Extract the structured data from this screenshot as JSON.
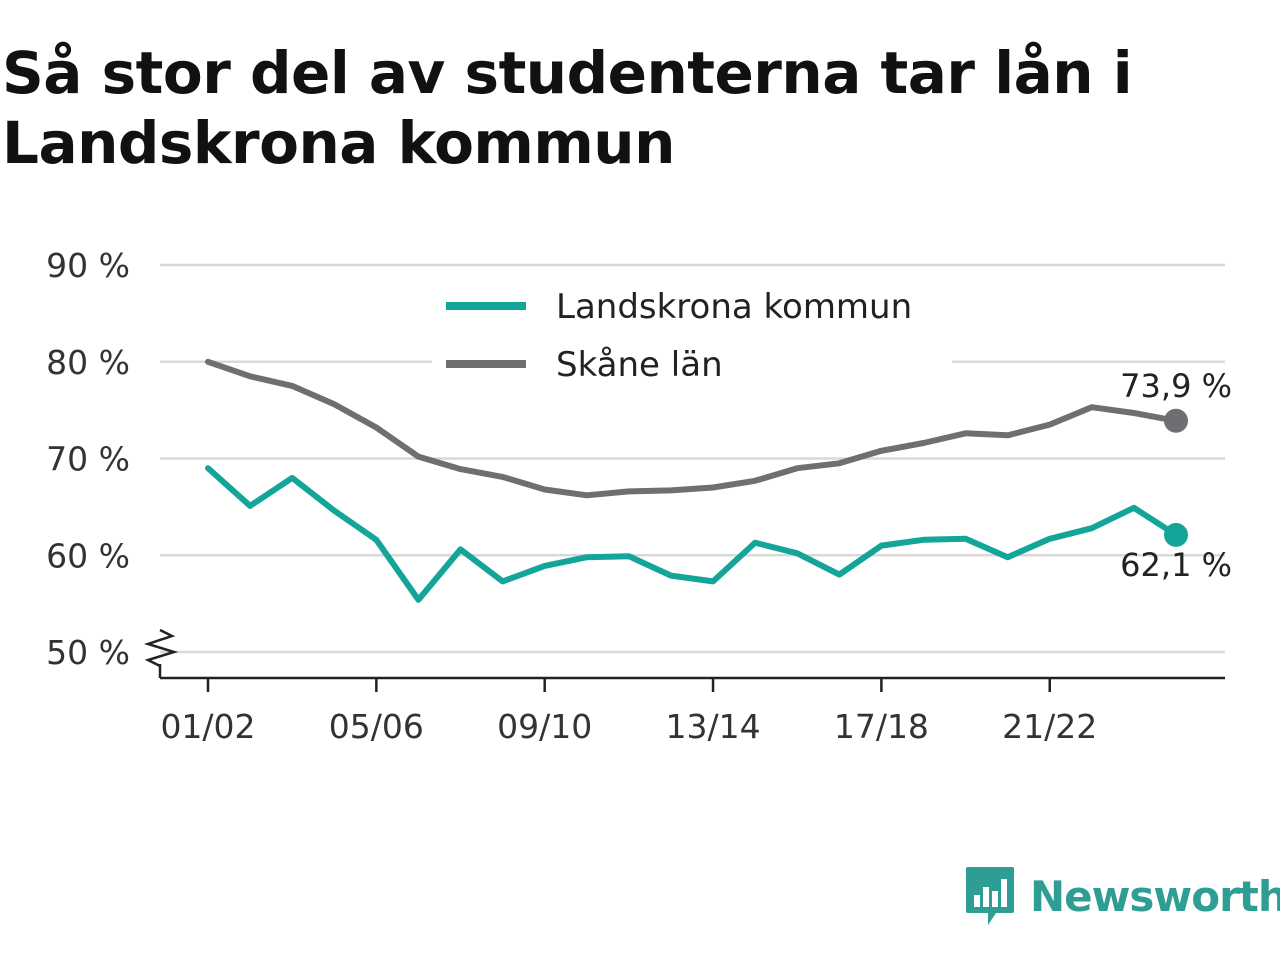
{
  "title": "Så stor del av studenterna tar lån i Landskrona kommun",
  "brand": {
    "name": "Newsworthy",
    "color": "#2e9e94"
  },
  "chart_data": {
    "type": "line",
    "x": [
      "01/02",
      "02/03",
      "03/04",
      "04/05",
      "05/06",
      "06/07",
      "07/08",
      "08/09",
      "09/10",
      "10/11",
      "11/12",
      "12/13",
      "13/14",
      "14/15",
      "15/16",
      "16/17",
      "17/18",
      "18/19",
      "19/20",
      "20/21",
      "21/22",
      "22/23",
      "23/24",
      "24/25"
    ],
    "xticks": [
      "01/02",
      "05/06",
      "09/10",
      "13/14",
      "17/18",
      "21/22"
    ],
    "yticks": [
      50,
      60,
      70,
      80,
      90
    ],
    "ytick_labels": [
      "50 %",
      "60 %",
      "70 %",
      "80 %",
      "90 %"
    ],
    "ylim": [
      50,
      90
    ],
    "y_axis_break": true,
    "grid": true,
    "legend_position": "top-center",
    "series": [
      {
        "name": "Landskrona kommun",
        "color": "#14a59a",
        "values": [
          69.0,
          65.1,
          68.0,
          64.6,
          61.6,
          55.4,
          60.6,
          57.3,
          58.9,
          59.8,
          59.9,
          57.9,
          57.3,
          61.3,
          60.2,
          58.0,
          61.0,
          61.6,
          61.7,
          59.8,
          61.7,
          62.8,
          64.9,
          62.1
        ],
        "end_label": "62,1 %"
      },
      {
        "name": "Skåne län",
        "color": "#6f6e73",
        "values": [
          80.0,
          78.5,
          77.5,
          75.6,
          73.2,
          70.2,
          68.9,
          68.1,
          66.8,
          66.2,
          66.6,
          66.7,
          67.0,
          67.7,
          69.0,
          69.5,
          70.8,
          71.6,
          72.6,
          72.4,
          73.5,
          75.3,
          74.7,
          73.9
        ],
        "end_label": "73,9 %"
      }
    ]
  }
}
